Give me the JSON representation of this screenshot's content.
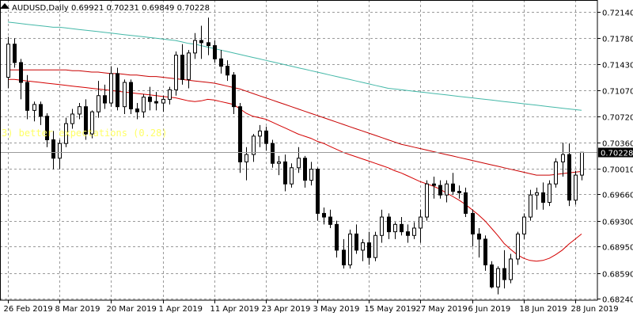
{
  "header": {
    "symbol_timeframe": "AUDUSD,Daily",
    "ohlc": "0.69921 0.70231 0.69849 0.70228"
  },
  "indicator_label": "3) better expectations (0.28)",
  "current_price": "0.70228",
  "colors": {
    "background": "#ffffff",
    "grid": "#9a9a9a",
    "candle_body_bull": "#ffffff",
    "candle_body_bear": "#000000",
    "candle_wick": "#000000",
    "ma_fast": "#d40000",
    "ma_mid": "#c80000",
    "ma_slow": "#44b8a8",
    "indicator_text": "#ffff66",
    "price_tag_bg": "#000000",
    "price_tag_text": "#ffffff",
    "current_price_line": "#9a9a9a"
  },
  "chart_data": {
    "type": "candlestick",
    "title": "AUDUSD,Daily",
    "x_tick_labels": [
      "26 Feb 2019",
      "8 Mar 2019",
      "20 Mar 2019",
      "1 Apr 2019",
      "11 Apr 2019",
      "23 Apr 2019",
      "3 May 2019",
      "15 May 2019",
      "27 May 2019",
      "6 Jun 2019",
      "18 Jun 2019",
      "28 Jun 2019"
    ],
    "y_tick_labels": [
      "0.72140",
      "0.71780",
      "0.71430",
      "0.71070",
      "0.70720",
      "0.70360",
      "0.70010",
      "0.69660",
      "0.69300",
      "0.68950",
      "0.68590",
      "0.68240"
    ],
    "y_ticks": [
      0.7214,
      0.7178,
      0.7143,
      0.7107,
      0.7072,
      0.7036,
      0.7001,
      0.6966,
      0.693,
      0.6895,
      0.6859,
      0.6824
    ],
    "ylim": [
      0.6822,
      0.723
    ],
    "grid": true,
    "candles": [
      [
        0.7125,
        0.718,
        0.711,
        0.717
      ],
      [
        0.717,
        0.7178,
        0.7138,
        0.7145
      ],
      [
        0.7145,
        0.715,
        0.7095,
        0.7118
      ],
      [
        0.7118,
        0.7128,
        0.7068,
        0.708
      ],
      [
        0.708,
        0.7092,
        0.7065,
        0.7088
      ],
      [
        0.7088,
        0.7092,
        0.706,
        0.7072
      ],
      [
        0.7072,
        0.7076,
        0.703,
        0.704
      ],
      [
        0.704,
        0.7052,
        0.7,
        0.7015
      ],
      [
        0.7015,
        0.704,
        0.7,
        0.7035
      ],
      [
        0.7035,
        0.707,
        0.703,
        0.7062
      ],
      [
        0.7062,
        0.7082,
        0.7055,
        0.7075
      ],
      [
        0.7075,
        0.709,
        0.7068,
        0.7085
      ],
      [
        0.7085,
        0.7095,
        0.704,
        0.7048
      ],
      [
        0.7048,
        0.708,
        0.7042,
        0.7078
      ],
      [
        0.7078,
        0.712,
        0.707,
        0.71
      ],
      [
        0.71,
        0.7115,
        0.7082,
        0.709
      ],
      [
        0.709,
        0.714,
        0.7085,
        0.713
      ],
      [
        0.713,
        0.7138,
        0.708,
        0.7085
      ],
      [
        0.7085,
        0.7122,
        0.7075,
        0.7118
      ],
      [
        0.7118,
        0.7122,
        0.7075,
        0.7082
      ],
      [
        0.7082,
        0.709,
        0.7068,
        0.7078
      ],
      [
        0.7078,
        0.7102,
        0.707,
        0.7098
      ],
      [
        0.7098,
        0.7112,
        0.708,
        0.7092
      ],
      [
        0.7092,
        0.7105,
        0.708,
        0.709
      ],
      [
        0.709,
        0.71,
        0.7078,
        0.7095
      ],
      [
        0.7095,
        0.7112,
        0.7088,
        0.7108
      ],
      [
        0.7108,
        0.716,
        0.71,
        0.7155
      ],
      [
        0.7155,
        0.717,
        0.7115,
        0.7122
      ],
      [
        0.7122,
        0.7162,
        0.711,
        0.7158
      ],
      [
        0.7158,
        0.7185,
        0.715,
        0.7175
      ],
      [
        0.7175,
        0.7195,
        0.715,
        0.7172
      ],
      [
        0.7172,
        0.7206,
        0.7155,
        0.7168
      ],
      [
        0.7168,
        0.7175,
        0.7145,
        0.715
      ],
      [
        0.715,
        0.7162,
        0.713,
        0.714
      ],
      [
        0.714,
        0.7148,
        0.712,
        0.7128
      ],
      [
        0.7128,
        0.7132,
        0.7075,
        0.7085
      ],
      [
        0.7085,
        0.709,
        0.6995,
        0.701
      ],
      [
        0.701,
        0.703,
        0.6985,
        0.702
      ],
      [
        0.702,
        0.7048,
        0.701,
        0.7045
      ],
      [
        0.7045,
        0.706,
        0.703,
        0.7052
      ],
      [
        0.7052,
        0.7058,
        0.7025,
        0.7035
      ],
      [
        0.7035,
        0.704,
        0.7002,
        0.7008
      ],
      [
        0.7008,
        0.7018,
        0.6992,
        0.701
      ],
      [
        0.701,
        0.702,
        0.697,
        0.698
      ],
      [
        0.698,
        0.7008,
        0.6975,
        0.7002
      ],
      [
        0.7002,
        0.703,
        0.6995,
        0.7015
      ],
      [
        0.7015,
        0.7018,
        0.6975,
        0.6985
      ],
      [
        0.6985,
        0.701,
        0.6978,
        0.7
      ],
      [
        0.7,
        0.7002,
        0.693,
        0.694
      ],
      [
        0.694,
        0.6948,
        0.6925,
        0.6935
      ],
      [
        0.6935,
        0.6945,
        0.692,
        0.6925
      ],
      [
        0.6925,
        0.693,
        0.688,
        0.689
      ],
      [
        0.689,
        0.6905,
        0.6865,
        0.687
      ],
      [
        0.687,
        0.6918,
        0.6865,
        0.6912
      ],
      [
        0.6912,
        0.6925,
        0.6885,
        0.689
      ],
      [
        0.689,
        0.6905,
        0.6875,
        0.69
      ],
      [
        0.69,
        0.6915,
        0.687,
        0.688
      ],
      [
        0.688,
        0.6915,
        0.6875,
        0.691
      ],
      [
        0.691,
        0.6945,
        0.69,
        0.6935
      ],
      [
        0.6935,
        0.694,
        0.6905,
        0.6915
      ],
      [
        0.6915,
        0.6928,
        0.6905,
        0.6925
      ],
      [
        0.6925,
        0.6935,
        0.691,
        0.6915
      ],
      [
        0.6915,
        0.6925,
        0.69,
        0.691
      ],
      [
        0.691,
        0.6928,
        0.6905,
        0.692
      ],
      [
        0.692,
        0.6945,
        0.69,
        0.6935
      ],
      [
        0.6935,
        0.6985,
        0.693,
        0.698
      ],
      [
        0.698,
        0.699,
        0.696,
        0.6978
      ],
      [
        0.6978,
        0.6985,
        0.696,
        0.6965
      ],
      [
        0.6965,
        0.6985,
        0.6955,
        0.698
      ],
      [
        0.698,
        0.6995,
        0.6965,
        0.697
      ],
      [
        0.697,
        0.6978,
        0.696,
        0.6968
      ],
      [
        0.6968,
        0.6975,
        0.6935,
        0.694
      ],
      [
        0.694,
        0.6945,
        0.6895,
        0.6912
      ],
      [
        0.6912,
        0.692,
        0.688,
        0.6905
      ],
      [
        0.6905,
        0.691,
        0.6862,
        0.687
      ],
      [
        0.687,
        0.6875,
        0.6838,
        0.684
      ],
      [
        0.684,
        0.6868,
        0.683,
        0.6865
      ],
      [
        0.6865,
        0.689,
        0.6838,
        0.685
      ],
      [
        0.685,
        0.6885,
        0.6845,
        0.6878
      ],
      [
        0.6878,
        0.6915,
        0.687,
        0.6912
      ],
      [
        0.6912,
        0.694,
        0.6905,
        0.6935
      ],
      [
        0.6935,
        0.6972,
        0.693,
        0.6965
      ],
      [
        0.6965,
        0.6975,
        0.6945,
        0.6968
      ],
      [
        0.6968,
        0.6982,
        0.6945,
        0.6955
      ],
      [
        0.6955,
        0.6985,
        0.695,
        0.698
      ],
      [
        0.698,
        0.7015,
        0.6975,
        0.701
      ],
      [
        0.701,
        0.7036,
        0.699,
        0.702
      ],
      [
        0.702,
        0.7035,
        0.695,
        0.6958
      ],
      [
        0.6958,
        0.6998,
        0.6952,
        0.6992
      ],
      [
        0.6992,
        0.7023,
        0.6985,
        0.7023
      ]
    ],
    "moving_averages": [
      {
        "color_key": "ma_fast",
        "start_index": 0,
        "values": [
          0.7122,
          0.7122,
          0.7121,
          0.712,
          0.7119,
          0.7118,
          0.7117,
          0.7116,
          0.7115,
          0.7114,
          0.7113,
          0.7112,
          0.7111,
          0.711,
          0.7109,
          0.7108,
          0.7107,
          0.7106,
          0.7105,
          0.7104,
          0.7103,
          0.7102,
          0.7101,
          0.71,
          0.7099,
          0.7098,
          0.7097,
          0.7095,
          0.7093,
          0.7092,
          0.7093,
          0.7095,
          0.7094,
          0.7092,
          0.709,
          0.7088,
          0.7082,
          0.7076,
          0.7072,
          0.707,
          0.7068,
          0.7064,
          0.706,
          0.7056,
          0.7052,
          0.7048,
          0.7045,
          0.7042,
          0.7038,
          0.7035,
          0.7031,
          0.7027,
          0.7023,
          0.702,
          0.7017,
          0.7014,
          0.7011,
          0.7008,
          0.7005,
          0.7002,
          0.6998,
          0.6995,
          0.6991,
          0.6987,
          0.6983,
          0.698,
          0.6977,
          0.6973,
          0.6968,
          0.6963,
          0.6958,
          0.6952,
          0.6945,
          0.6938,
          0.693,
          0.692,
          0.691,
          0.6899,
          0.6891,
          0.6884,
          0.6879,
          0.6876,
          0.6875,
          0.6876,
          0.6879,
          0.6884,
          0.689,
          0.6898,
          0.6905,
          0.6912
        ]
      },
      {
        "color_key": "ma_mid",
        "start_index": 0,
        "values": [
          0.7135,
          0.7135,
          0.7135,
          0.7135,
          0.7135,
          0.7135,
          0.7135,
          0.7135,
          0.7135,
          0.7135,
          0.7134,
          0.7134,
          0.7133,
          0.7132,
          0.7132,
          0.7131,
          0.713,
          0.713,
          0.7129,
          0.7128,
          0.7128,
          0.7127,
          0.7126,
          0.7126,
          0.7125,
          0.7124,
          0.7123,
          0.7122,
          0.7121,
          0.712,
          0.7119,
          0.7118,
          0.7117,
          0.7115,
          0.7113,
          0.7111,
          0.7109,
          0.7106,
          0.7103,
          0.71,
          0.7097,
          0.7094,
          0.7091,
          0.7088,
          0.7085,
          0.7082,
          0.7079,
          0.7076,
          0.7073,
          0.707,
          0.7067,
          0.7064,
          0.7061,
          0.7058,
          0.7055,
          0.7052,
          0.7049,
          0.7046,
          0.7043,
          0.704,
          0.7037,
          0.7034,
          0.7032,
          0.703,
          0.7028,
          0.7026,
          0.7024,
          0.7022,
          0.702,
          0.7018,
          0.7016,
          0.7014,
          0.7012,
          0.701,
          0.7008,
          0.7006,
          0.7004,
          0.7002,
          0.7,
          0.6998,
          0.6996,
          0.6994,
          0.6992,
          0.6992,
          0.6992,
          0.6993,
          0.6994,
          0.6995,
          0.6996,
          0.6997
        ]
      },
      {
        "color_key": "ma_slow",
        "start_index": 0,
        "values": [
          0.72,
          0.7199,
          0.7198,
          0.7197,
          0.7196,
          0.7195,
          0.7194,
          0.7193,
          0.7193,
          0.7192,
          0.7191,
          0.719,
          0.7189,
          0.7188,
          0.7187,
          0.7186,
          0.7185,
          0.7184,
          0.7183,
          0.7182,
          0.7181,
          0.718,
          0.7179,
          0.7178,
          0.7177,
          0.7176,
          0.7175,
          0.7173,
          0.7171,
          0.717,
          0.7168,
          0.7166,
          0.7164,
          0.7162,
          0.716,
          0.7158,
          0.7156,
          0.7154,
          0.7152,
          0.715,
          0.7148,
          0.7146,
          0.7144,
          0.7142,
          0.714,
          0.7138,
          0.7136,
          0.7134,
          0.7132,
          0.713,
          0.7128,
          0.7126,
          0.7124,
          0.7122,
          0.712,
          0.7118,
          0.7116,
          0.7114,
          0.7112,
          0.711,
          0.7109,
          0.7108,
          0.7107,
          0.7106,
          0.7105,
          0.7104,
          0.7103,
          0.7102,
          0.7101,
          0.71,
          0.7099,
          0.7098,
          0.7097,
          0.7096,
          0.7095,
          0.7094,
          0.7093,
          0.7092,
          0.7091,
          0.709,
          0.7089,
          0.7088,
          0.7087,
          0.7086,
          0.7085,
          0.7084,
          0.7083,
          0.7082,
          0.7081,
          0.708
        ]
      }
    ]
  }
}
